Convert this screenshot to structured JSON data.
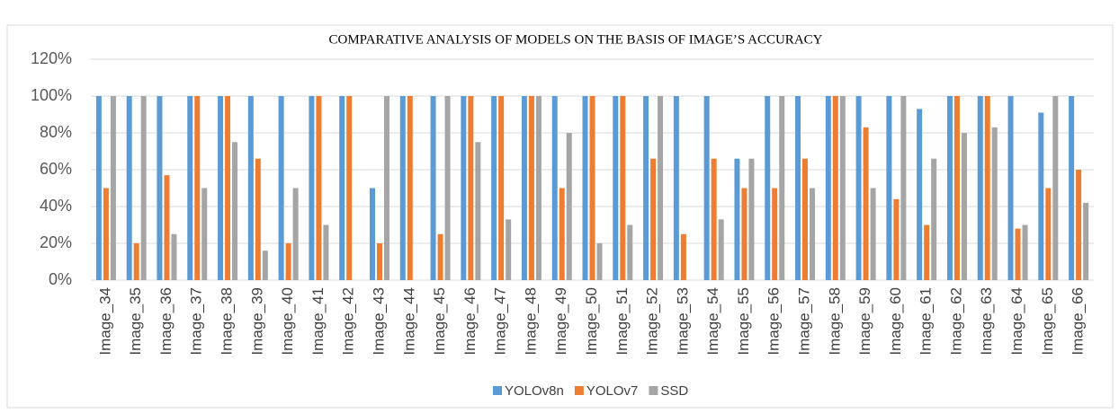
{
  "chart_data": {
    "type": "bar",
    "title": "COMPARATIVE ANALYSIS OF MODELS ON THE BASIS OF IMAGE’S ACCURACY",
    "categories": [
      "Image_34",
      "Image_35",
      "Image_36",
      "Image_37",
      "Image_38",
      "Image_39",
      "Image_40",
      "Image_41",
      "Image_42",
      "Image_43",
      "Image_44",
      "Image_45",
      "Image_46",
      "Image_47",
      "Image_48",
      "Image_49",
      "Image_50",
      "Image_51",
      "Image_52",
      "Image_53",
      "Image_54",
      "Image_55",
      "Image_56",
      "Image_57",
      "Image_58",
      "Image_59",
      "Image_60",
      "Image_61",
      "Image_62",
      "Image_63",
      "Image_64",
      "Image_65",
      "Image_66"
    ],
    "series": [
      {
        "name": "YOLOv8n",
        "color": "#5b9bd5",
        "values": [
          100,
          100,
          100,
          100,
          100,
          100,
          100,
          100,
          100,
          50,
          100,
          100,
          100,
          100,
          100,
          100,
          100,
          100,
          100,
          100,
          100,
          66,
          100,
          100,
          100,
          100,
          100,
          93,
          100,
          100,
          100,
          91,
          100
        ]
      },
      {
        "name": "YOLOv7",
        "color": "#ed7d31",
        "values": [
          50,
          20,
          57,
          100,
          100,
          66,
          20,
          100,
          100,
          20,
          100,
          25,
          100,
          100,
          100,
          50,
          100,
          100,
          66,
          25,
          66,
          50,
          50,
          66,
          100,
          83,
          44,
          30,
          100,
          100,
          28,
          50,
          60
        ]
      },
      {
        "name": "SSD",
        "color": "#a5a5a5",
        "values": [
          100,
          100,
          25,
          50,
          75,
          16,
          50,
          30,
          0,
          100,
          0,
          100,
          75,
          33,
          100,
          80,
          20,
          30,
          100,
          0,
          33,
          66,
          100,
          50,
          100,
          50,
          100,
          66,
          80,
          83,
          30,
          100,
          42
        ]
      }
    ],
    "ylim": [
      0,
      120
    ],
    "yticks": [
      {
        "value": 0,
        "label": "0%"
      },
      {
        "value": 20,
        "label": "20%"
      },
      {
        "value": 40,
        "label": "40%"
      },
      {
        "value": 60,
        "label": "60%"
      },
      {
        "value": 80,
        "label": "80%"
      },
      {
        "value": 100,
        "label": "100%"
      },
      {
        "value": 120,
        "label": "120%"
      }
    ],
    "grid": true,
    "legend": "bottom"
  }
}
